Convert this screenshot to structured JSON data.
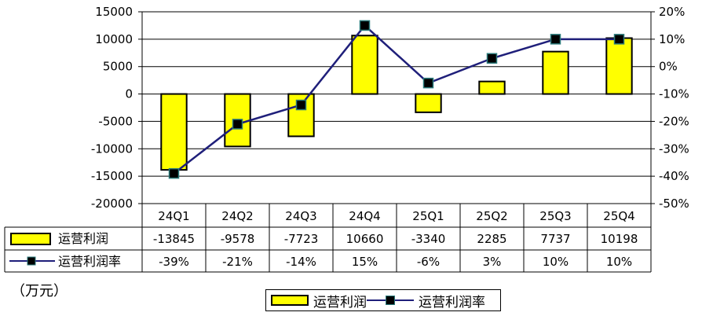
{
  "chart_data": {
    "type": "bar",
    "categories": [
      "24Q1",
      "24Q2",
      "24Q3",
      "24Q4",
      "25Q1",
      "25Q2",
      "25Q3",
      "25Q4"
    ],
    "series": [
      {
        "name": "运营利润",
        "type": "bar",
        "axis": "left",
        "values": [
          -13845,
          -9578,
          -7723,
          10660,
          -3340,
          2285,
          7737,
          10198
        ],
        "color": "#ffff00"
      },
      {
        "name": "运营利润率",
        "type": "line",
        "axis": "right",
        "values": [
          -39,
          -21,
          -14,
          15,
          -6,
          3,
          10,
          10
        ],
        "color": "#1f1f7a"
      }
    ],
    "left_axis": {
      "ylim": [
        -20000,
        15000
      ],
      "ticks": [
        "15000",
        "10000",
        "5000",
        "0",
        "-5000",
        "-10000",
        "-15000",
        "-20000"
      ]
    },
    "right_axis": {
      "ylim": [
        -50,
        20
      ],
      "ticks": [
        "20%",
        "10%",
        "0%",
        "-10%",
        "-20%",
        "-30%",
        "-40%",
        "-50%"
      ]
    },
    "table": {
      "row1_label": "运营利润",
      "row1_values": [
        "-13845",
        "-9578",
        "-7723",
        "10660",
        "-3340",
        "2285",
        "7737",
        "10198"
      ],
      "row2_label": "运营利润率",
      "row2_values": [
        "-39%",
        "-21%",
        "-14%",
        "15%",
        "-6%",
        "3%",
        "10%",
        "10%"
      ]
    },
    "unit_label": "（万元）",
    "legend": {
      "position": "bottom",
      "items": [
        "运营利润",
        "运营利润率"
      ]
    },
    "grid": true
  }
}
